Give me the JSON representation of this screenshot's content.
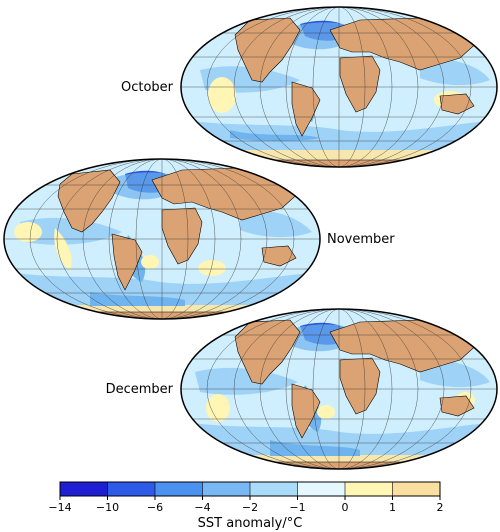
{
  "panels": [
    {
      "id": "oct",
      "label": "October",
      "label_side": "left"
    },
    {
      "id": "nov",
      "label": "November",
      "label_side": "right"
    },
    {
      "id": "dec",
      "label": "December",
      "label_side": "left"
    }
  ],
  "colorbar": {
    "title": "SST anomaly/°C",
    "ticks": [
      "−14",
      "−10",
      "−6",
      "−4",
      "−2",
      "−1",
      "0",
      "1",
      "2"
    ],
    "colors": [
      "#1e1ed2",
      "#2d5ae6",
      "#4b91f0",
      "#78b9f5",
      "#aadcfa",
      "#e6f8ff",
      "#fff5b4",
      "#fae0a0"
    ]
  },
  "map_colors": {
    "land": "#dba373",
    "ocean_base": "#cfefff",
    "cold": "#9fd2f7",
    "colder": "#6fb4ee",
    "coldest": "#2a57de",
    "warm": "#fff5b4",
    "polar_warm": "#f7e6ad"
  }
}
